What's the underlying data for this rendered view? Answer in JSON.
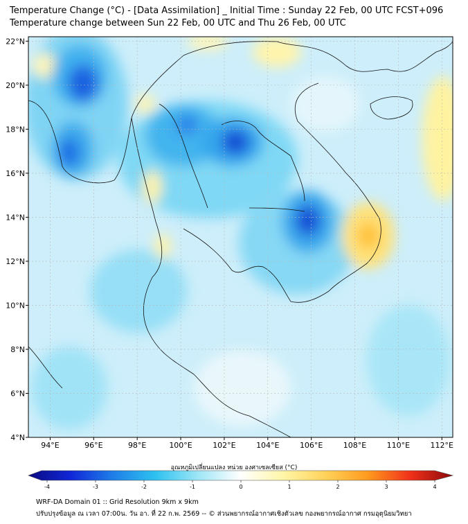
{
  "header": {
    "title_line1": "Temperature Change (°C) - [Data Assimilation] _ Initial Time : Sunday 22 Feb, 00 UTC FCST+096",
    "title_line2": "Temperature change between Sun 22 Feb, 00 UTC and Thu 26 Feb, 00 UTC"
  },
  "map": {
    "lon_range": [
      93,
      112.5
    ],
    "lat_range": [
      4,
      22.2
    ],
    "lat_ticks": [
      {
        "value": 22,
        "label": "22°N"
      },
      {
        "value": 20,
        "label": "20°N"
      },
      {
        "value": 18,
        "label": "18°N"
      },
      {
        "value": 16,
        "label": "16°N"
      },
      {
        "value": 14,
        "label": "14°N"
      },
      {
        "value": 12,
        "label": "12°N"
      },
      {
        "value": 10,
        "label": "10°N"
      },
      {
        "value": 8,
        "label": "8°N"
      },
      {
        "value": 6,
        "label": "6°N"
      },
      {
        "value": 4,
        "label": "4°N"
      }
    ],
    "lon_ticks": [
      {
        "value": 94,
        "label": "94°E"
      },
      {
        "value": 96,
        "label": "96°E"
      },
      {
        "value": 98,
        "label": "98°E"
      },
      {
        "value": 100,
        "label": "100°E"
      },
      {
        "value": 102,
        "label": "102°E"
      },
      {
        "value": 104,
        "label": "104°E"
      },
      {
        "value": 106,
        "label": "106°E"
      },
      {
        "value": 108,
        "label": "108°E"
      },
      {
        "value": 110,
        "label": "110°E"
      },
      {
        "value": 112,
        "label": "112°E"
      }
    ],
    "grid": true,
    "background_color": "#cdeefa",
    "features": [
      {
        "kind": "cool",
        "lon": 95.6,
        "lat": 20.1,
        "value": -2.2
      },
      {
        "kind": "cool",
        "lon": 94.9,
        "lat": 17.0,
        "value": -2.0
      },
      {
        "kind": "cool",
        "lon": 102.3,
        "lat": 17.4,
        "value": -2.8
      },
      {
        "kind": "cool",
        "lon": 100.7,
        "lat": 17.7,
        "value": -1.8
      },
      {
        "kind": "cool",
        "lon": 106.0,
        "lat": 13.8,
        "value": -2.8
      },
      {
        "kind": "warm",
        "lon": 108.8,
        "lat": 13.1,
        "value": 1.6
      },
      {
        "kind": "warm",
        "lon": 112.1,
        "lat": 17.5,
        "value": 0.8
      },
      {
        "kind": "warm",
        "lon": 103.8,
        "lat": 21.4,
        "value": 0.6
      },
      {
        "kind": "warm",
        "lon": 98.4,
        "lat": 15.0,
        "value": 0.6
      }
    ]
  },
  "colorbar": {
    "title": "อุณหภูมิเปลี่ยนแปลง หน่วย องศาเซลเซียส (°C)",
    "min": -4,
    "max": 4,
    "ticks": [
      {
        "value": -4,
        "label": "-4"
      },
      {
        "value": -3,
        "label": "-3"
      },
      {
        "value": -2,
        "label": "-2"
      },
      {
        "value": -1,
        "label": "-1"
      },
      {
        "value": 0,
        "label": "0"
      },
      {
        "value": 1,
        "label": "1"
      },
      {
        "value": 2,
        "label": "2"
      },
      {
        "value": 3,
        "label": "3"
      },
      {
        "value": 4,
        "label": "4"
      }
    ],
    "stops": [
      "#0b0a80",
      "#1027d8",
      "#1f7fe8",
      "#2ec2f0",
      "#9ee6f6",
      "#ffffff",
      "#fff6a8",
      "#ffd25a",
      "#ff9a1e",
      "#f0301a",
      "#8c0a0a"
    ]
  },
  "footer": {
    "line1": "WRF-DA Domain 01 :: Grid Resolution 9km x 9km",
    "line2": "ปรับปรุงข้อมูล ณ เวลา 07:00น. วัน อา. ที่ 22 ก.พ. 2569 -- © ส่วนพยากรณ์อากาศเชิงตัวเลข กองพยากรณ์อากาศ กรมอุตุนิยมวิทยา"
  }
}
